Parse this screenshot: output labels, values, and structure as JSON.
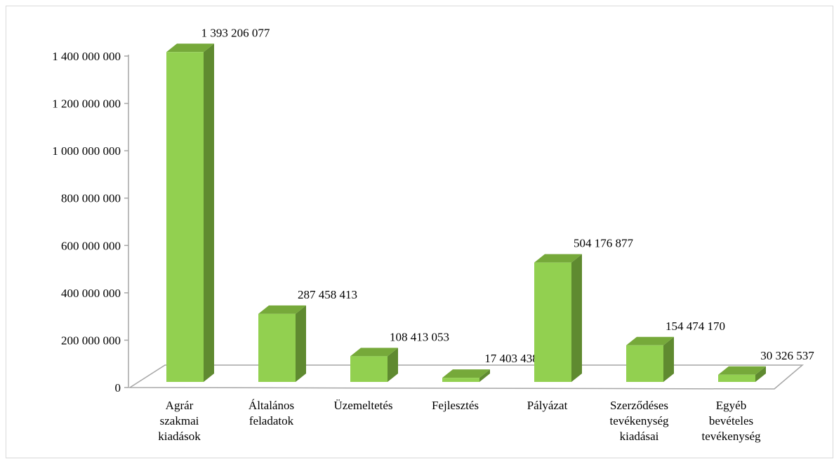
{
  "chart_data": {
    "type": "bar3d",
    "categories": [
      "Agrár szakmai kiadások",
      "Általános feladatok",
      "Üzemeltetés",
      "Fejlesztés",
      "Pályázat",
      "Szerződéses tevékenység kiadásai",
      "Egyéb bevételes tevékenység"
    ],
    "values": [
      1393206077,
      287458413,
      108413053,
      17403438,
      504176877,
      154474170,
      30326537
    ],
    "value_labels": [
      "1 393 206 077",
      "287 458 413",
      "108 413 053",
      "17 403 438",
      "504 176 877",
      "154 474 170",
      "30 326 537"
    ],
    "color": "#92d050",
    "ylim": [
      0,
      1400000000
    ],
    "yticks": [
      0,
      {
        "value": 200000000,
        "label": "200 000 000"
      },
      {
        "value": 400000000,
        "label": "400 000 000"
      },
      {
        "value": 600000000,
        "label": "600 000 000"
      },
      {
        "value": 800000000,
        "label": "800 000 000"
      },
      {
        "value": 1000000000,
        "label": "1 000 000 000"
      },
      {
        "value": 1200000000,
        "label": "1 200 000 000"
      },
      {
        "value": 1400000000,
        "label": "1 400 000 000"
      }
    ]
  }
}
